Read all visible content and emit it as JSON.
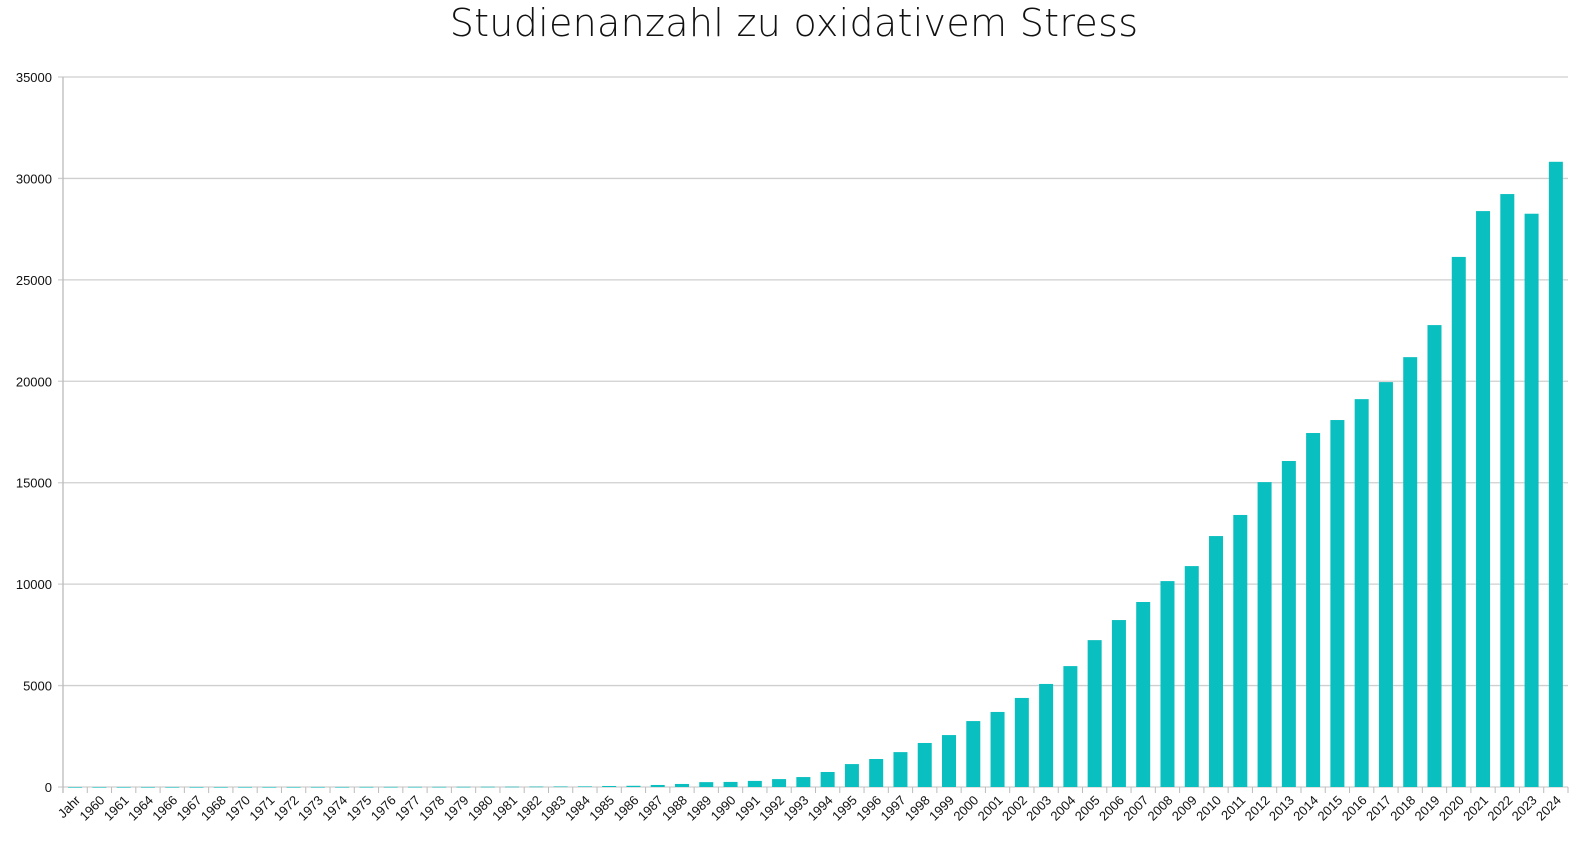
{
  "chart_data": {
    "type": "bar",
    "title": "Studienanzahl zu oxidativem Stress",
    "xlabel": "",
    "ylabel": "",
    "ylim": [
      0,
      35000
    ],
    "yticks": [
      0,
      5000,
      10000,
      15000,
      20000,
      25000,
      30000,
      35000
    ],
    "grid": true,
    "legend": "none",
    "bar_color": "#0abfbf",
    "categories": [
      "Jahr",
      "1960",
      "1961",
      "1964",
      "1966",
      "1967",
      "1968",
      "1970",
      "1971",
      "1972",
      "1973",
      "1974",
      "1975",
      "1976",
      "1977",
      "1978",
      "1979",
      "1980",
      "1981",
      "1982",
      "1983",
      "1984",
      "1985",
      "1986",
      "1987",
      "1988",
      "1989",
      "1990",
      "1991",
      "1992",
      "1993",
      "1994",
      "1995",
      "1996",
      "1997",
      "1998",
      "1999",
      "2000",
      "2001",
      "2002",
      "2003",
      "2004",
      "2005",
      "2006",
      "2007",
      "2008",
      "2009",
      "2010",
      "2011",
      "2012",
      "2013",
      "2014",
      "2015",
      "2016",
      "2017",
      "2018",
      "2019",
      "2020",
      "2021",
      "2022",
      "2023",
      "2024"
    ],
    "values": [
      0,
      1,
      1,
      1,
      1,
      1,
      1,
      2,
      2,
      2,
      3,
      3,
      5,
      6,
      7,
      8,
      10,
      12,
      15,
      20,
      25,
      30,
      50,
      60,
      100,
      150,
      240,
      250,
      300,
      390,
      490,
      740,
      1130,
      1380,
      1720,
      2170,
      2560,
      3250,
      3700,
      4390,
      5080,
      5960,
      7240,
      8230,
      9120,
      10150,
      10890,
      12370,
      13410,
      15030,
      16070,
      17450,
      18090,
      19120,
      19960,
      21190,
      22770,
      26130,
      28390,
      29230,
      28260,
      30820
    ]
  }
}
